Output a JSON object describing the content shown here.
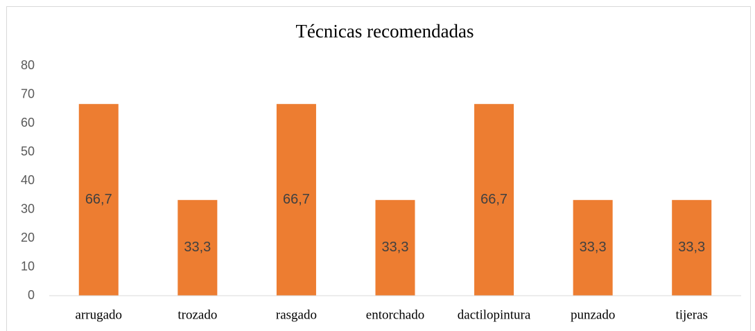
{
  "chart_data": {
    "type": "bar",
    "title": "Técnicas recomendadas",
    "categories": [
      "arrugado",
      "trozado",
      "rasgado",
      "entorchado",
      "dactilopintura",
      "punzado",
      "tijeras"
    ],
    "values": [
      66.7,
      33.3,
      66.7,
      33.3,
      66.7,
      33.3,
      33.3
    ],
    "value_labels": [
      "66,7",
      "33,3",
      "66,7",
      "33,3",
      "66,7",
      "33,3",
      "33,3"
    ],
    "color": "#ed7d31",
    "ylim": [
      0,
      80
    ],
    "yticks": [
      0,
      10,
      20,
      30,
      40,
      50,
      60,
      70,
      80
    ],
    "grid": false
  }
}
